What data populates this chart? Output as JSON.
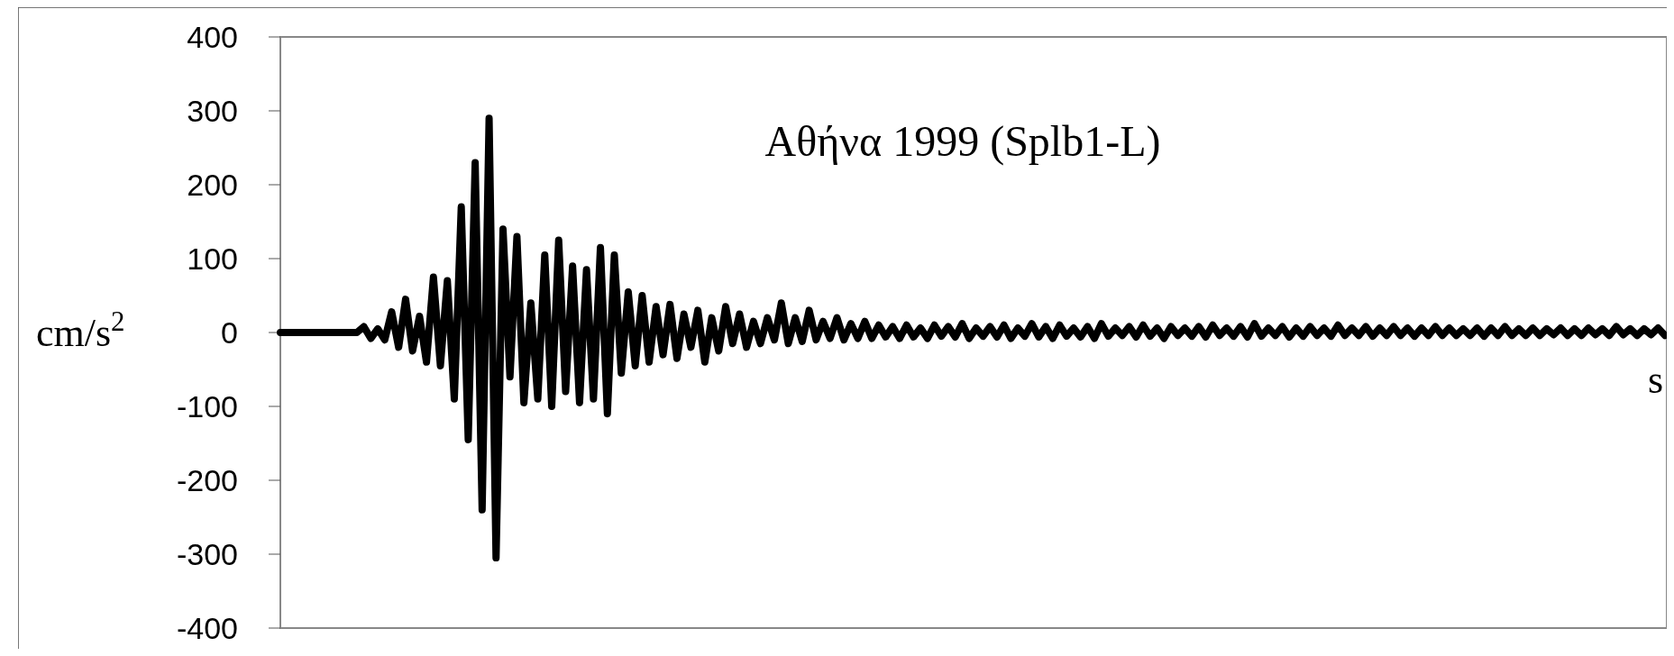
{
  "chart_data": {
    "type": "line",
    "title": "Αθήνα 1999 (Splb1-L)",
    "xlabel": "s",
    "ylabel": "cm/s$^{2}$",
    "categories": [
      null,
      null,
      null,
      null,
      null,
      null,
      null,
      null,
      null,
      null,
      null,
      null,
      null,
      null,
      null,
      null,
      null,
      null,
      null,
      null,
      null,
      null,
      null,
      null,
      null,
      null,
      null,
      null,
      null,
      null,
      null,
      null,
      null,
      null,
      null,
      null,
      null,
      null,
      null,
      null,
      null,
      null,
      null,
      null,
      null,
      null,
      null,
      null,
      null,
      null,
      null,
      null,
      null,
      null,
      null,
      null,
      null,
      null,
      null,
      null,
      null,
      null,
      null,
      null,
      null,
      null,
      null,
      null,
      null,
      null,
      null,
      null,
      null,
      null,
      null,
      null,
      null,
      null,
      null,
      null,
      null,
      null,
      null,
      null,
      null,
      null,
      null,
      null,
      null,
      null,
      null,
      null,
      null,
      null,
      null,
      null,
      null,
      null,
      null,
      null,
      null,
      null,
      null,
      null,
      null,
      null,
      null,
      null,
      null,
      null,
      null,
      null,
      null,
      null,
      null,
      null,
      null,
      null,
      null,
      null,
      null,
      null,
      null,
      null,
      null,
      null,
      null,
      null,
      null,
      null,
      null,
      null,
      null,
      null,
      null,
      null,
      null,
      null,
      null,
      null,
      null,
      null,
      null,
      null,
      null,
      null,
      null,
      null,
      null,
      null,
      null,
      null,
      null,
      null,
      null,
      null,
      null,
      null,
      null,
      null,
      null,
      null,
      null,
      null,
      null,
      null,
      null,
      null,
      null,
      null,
      null,
      null,
      null,
      null,
      null,
      null,
      null,
      null,
      null,
      null,
      null,
      null,
      null,
      null,
      null,
      null,
      null,
      null,
      null,
      null,
      null,
      null,
      null,
      null,
      null,
      null,
      null,
      null,
      null,
      null
    ],
    "series": [
      {
        "color": "#000000",
        "values": [
          0,
          0,
          0,
          0,
          0,
          0,
          0,
          0,
          0,
          0,
          0,
          0,
          8,
          -8,
          5,
          -10,
          28,
          -20,
          45,
          -25,
          22,
          -40,
          75,
          -45,
          70,
          -90,
          170,
          -145,
          230,
          -240,
          290,
          -305,
          140,
          -60,
          130,
          -95,
          40,
          -90,
          105,
          -100,
          125,
          -80,
          90,
          -95,
          85,
          -90,
          115,
          -110,
          105,
          -55,
          55,
          -45,
          50,
          -40,
          35,
          -30,
          38,
          -35,
          25,
          -20,
          30,
          -40,
          20,
          -25,
          35,
          -15,
          25,
          -20,
          15,
          -15,
          20,
          -10,
          40,
          -15,
          20,
          -12,
          30,
          -10,
          15,
          -8,
          20,
          -10,
          12,
          -8,
          15,
          -8,
          10,
          -6,
          8,
          -8,
          10,
          -6,
          6,
          -8,
          10,
          -5,
          8,
          -6,
          12,
          -8,
          6,
          -5,
          8,
          -6,
          10,
          -8,
          6,
          -5,
          12,
          -6,
          8,
          -8,
          10,
          -5,
          6,
          -6,
          8,
          -8,
          12,
          -5,
          6,
          -4,
          8,
          -6,
          10,
          -5,
          6,
          -8,
          8,
          -4,
          6,
          -5,
          8,
          -6,
          10,
          -4,
          6,
          -5,
          8,
          -6,
          12,
          -5,
          6,
          -4,
          8,
          -6,
          6,
          -5,
          8,
          -4,
          6,
          -5,
          10,
          -4,
          6,
          -4,
          8,
          -5,
          6,
          -4,
          8,
          -4,
          6,
          -5,
          6,
          -4,
          8,
          -4,
          6,
          -4,
          5,
          -4,
          6,
          -5,
          6,
          -4,
          8,
          -4,
          5,
          -4,
          6,
          -4,
          5,
          -3,
          6,
          -4,
          5,
          -4,
          6,
          -3,
          5,
          -4,
          8,
          -3,
          5,
          -4,
          5,
          -3,
          6,
          -4
        ]
      }
    ],
    "ylim": [
      -400,
      400
    ],
    "yticks": [
      -400,
      -300,
      -200,
      -100,
      0,
      100,
      200,
      300,
      400
    ],
    "grid": false,
    "line_style": "solid"
  }
}
